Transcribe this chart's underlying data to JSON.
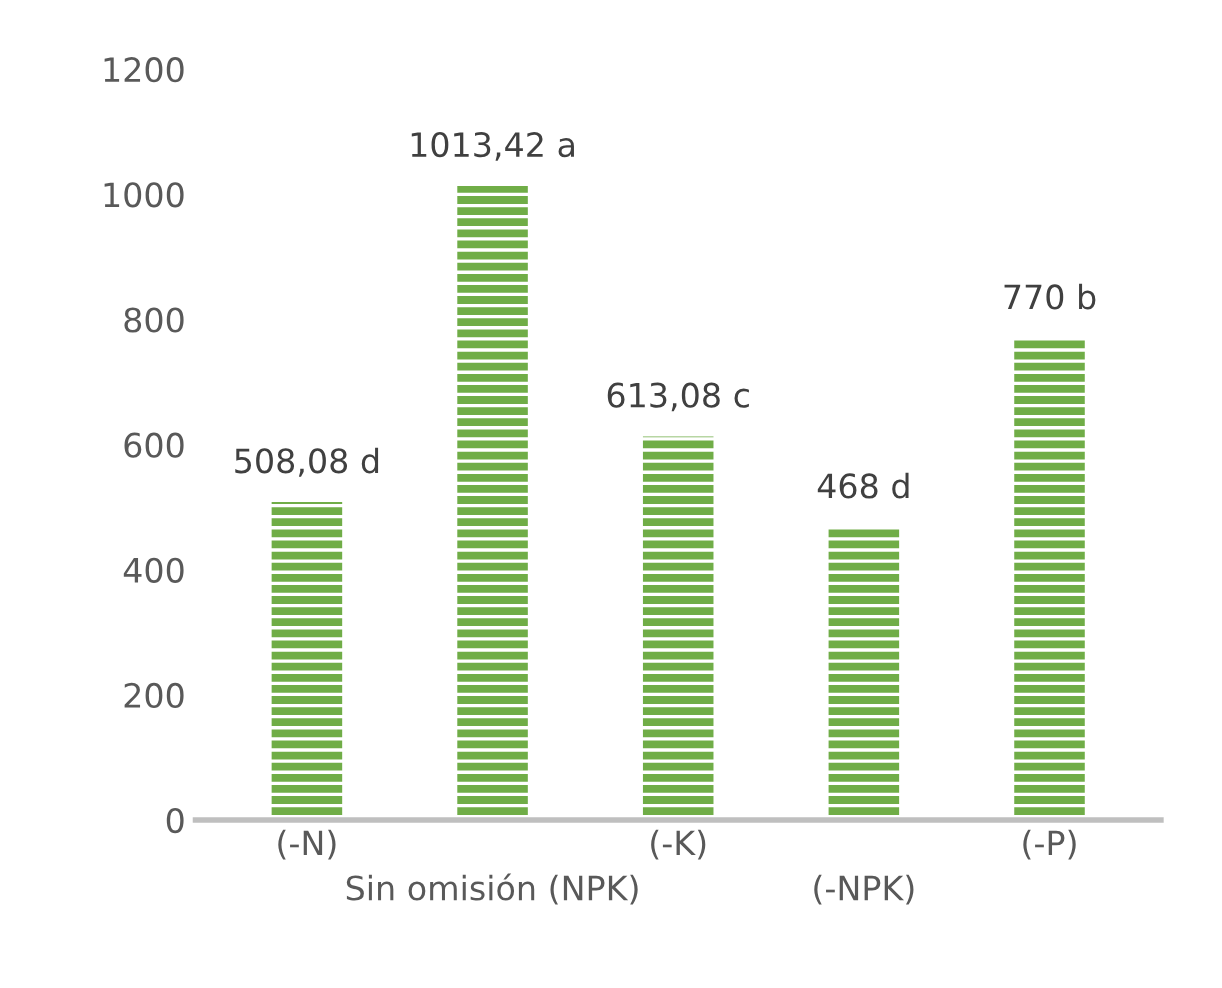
{
  "chart_data": {
    "type": "bar",
    "categories": [
      "(-N)",
      "Sin omisión (NPK)",
      "(-K)",
      "(-NPK)",
      "(-P)"
    ],
    "values": [
      508.08,
      1013.42,
      613.08,
      468,
      770
    ],
    "value_labels": [
      "508,08 d",
      "1013,42 a",
      "613,08 c",
      "468 d",
      "770 b"
    ],
    "color": "#70ad47",
    "ylim": [
      0,
      1200
    ],
    "yticks": [
      0,
      200,
      400,
      600,
      800,
      1000,
      1200
    ],
    "grid": false,
    "legend": false
  }
}
